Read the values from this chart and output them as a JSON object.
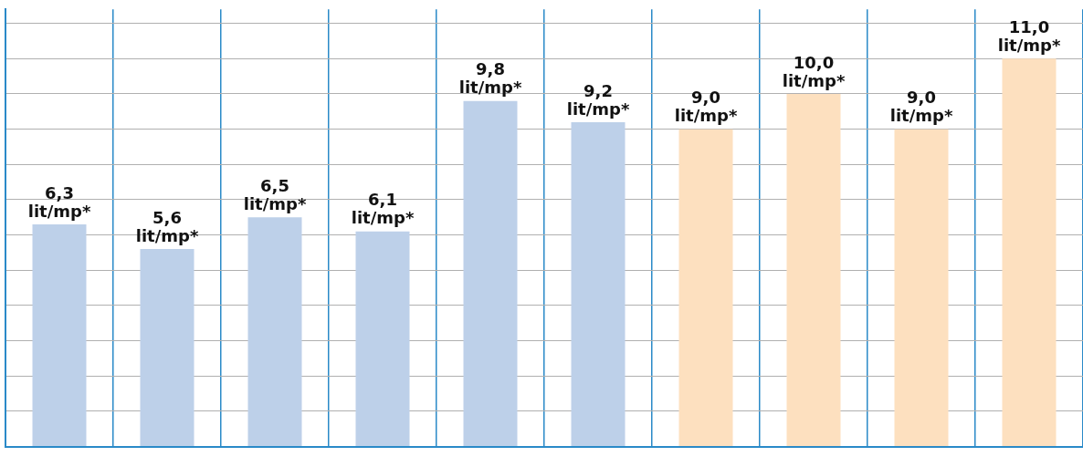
{
  "chart_data": {
    "type": "bar",
    "categories": [
      null,
      null,
      null,
      null,
      null,
      null,
      null,
      null,
      null,
      null
    ],
    "values": [
      6.3,
      5.6,
      6.5,
      6.1,
      9.8,
      9.2,
      9.0,
      10.0,
      9.0,
      11.0
    ],
    "colors": [
      "#bdd0e9",
      "#bdd0e9",
      "#bdd0e9",
      "#bdd0e9",
      "#bdd0e9",
      "#bdd0e9",
      "#fde0bf",
      "#fde0bf",
      "#fde0bf",
      "#fde0bf"
    ],
    "value_labels": [
      "6,3\nlit/mp*",
      "5,6\nlit/mp*",
      "6,5\nlit/mp*",
      "6,1\nlit/mp*",
      "9,8\nlit/mp*",
      "9,2\nlit/mp*",
      "9,0\nlit/mp*",
      "10,0\nlit/mp*",
      "9,0\nlit/mp*",
      "11,0\nlit/mp*"
    ],
    "ylim": [
      0,
      12.4
    ],
    "yticks": [
      {
        "value": 0,
        "label": null
      },
      {
        "value": 1,
        "label": null
      },
      {
        "value": 2,
        "label": null
      },
      {
        "value": 3,
        "label": null
      },
      {
        "value": 4,
        "label": null
      },
      {
        "value": 5,
        "label": null
      },
      {
        "value": 6,
        "label": null
      },
      {
        "value": 7,
        "label": null
      },
      {
        "value": 8,
        "label": null
      },
      {
        "value": 9,
        "label": null
      },
      {
        "value": 10,
        "label": null
      },
      {
        "value": 11,
        "label": null
      },
      {
        "value": 12,
        "label": null
      }
    ],
    "grid": true,
    "legend": false
  }
}
